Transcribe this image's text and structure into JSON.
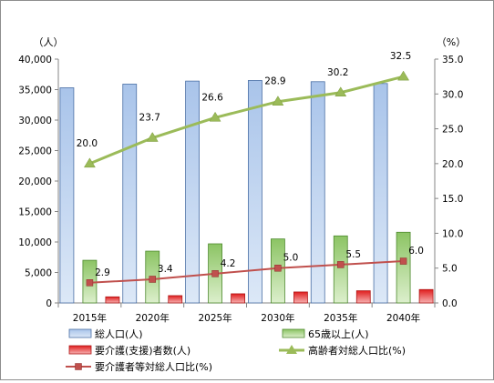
{
  "chart_data": {
    "type": "bar",
    "categories": [
      "2015年",
      "2020年",
      "2025年",
      "2030年",
      "2035年",
      "2040年"
    ],
    "left_axis": {
      "unit": "（人）",
      "ylim": [
        0,
        40000
      ],
      "ticks": [
        "0",
        "5,000",
        "10,000",
        "15,000",
        "20,000",
        "25,000",
        "30,000",
        "35,000",
        "40,000"
      ]
    },
    "right_axis": {
      "unit": "（%）",
      "ylim": [
        0,
        35
      ],
      "ticks": [
        "0.0",
        "5.0",
        "10.0",
        "15.0",
        "20.0",
        "25.0",
        "30.0",
        "35.0"
      ]
    },
    "grid": false,
    "legend_position": "bottom",
    "series": [
      {
        "name": "総人口(人)",
        "type": "bar",
        "axis": "left",
        "color": "#4f81bd",
        "values": [
          35300,
          35900,
          36400,
          36500,
          36300,
          36000
        ]
      },
      {
        "name": "65歳以上(人)",
        "type": "bar",
        "axis": "left",
        "color": "#77b153",
        "values": [
          7000,
          8500,
          9700,
          10500,
          11000,
          11600
        ]
      },
      {
        "name": "要介護(支援)者数(人)",
        "type": "bar",
        "axis": "left",
        "color": "#e02020",
        "values": [
          1000,
          1200,
          1500,
          1800,
          2000,
          2200
        ]
      },
      {
        "name": "高齢者対総人口比(%)",
        "type": "line",
        "axis": "right",
        "color": "#9bbb59",
        "marker": "triangle",
        "values": [
          20.0,
          23.7,
          26.6,
          28.9,
          30.2,
          32.5
        ],
        "labels": [
          "20.0",
          "23.7",
          "26.6",
          "28.9",
          "30.2",
          "32.5"
        ]
      },
      {
        "name": "要介護者等対総人口比(%)",
        "type": "line",
        "axis": "right",
        "color": "#c0504d",
        "marker": "square",
        "values": [
          2.9,
          3.4,
          4.2,
          5.0,
          5.5,
          6.0
        ],
        "labels": [
          "2.9",
          "3.4",
          "4.2",
          "5.0",
          "5.5",
          "6.0"
        ]
      }
    ]
  }
}
